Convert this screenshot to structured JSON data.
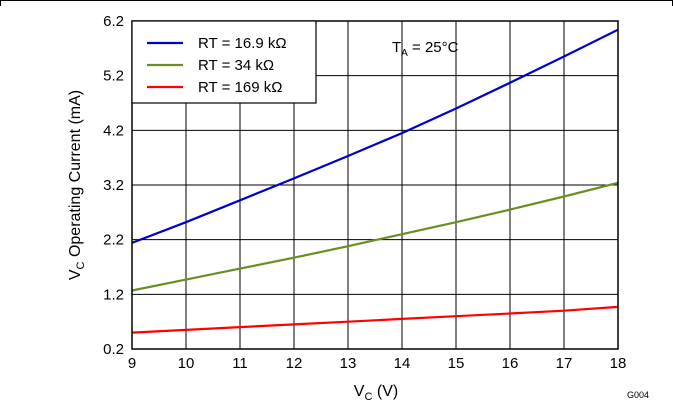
{
  "chart_data": {
    "type": "line",
    "xlabel": {
      "main": "V",
      "sub": "C",
      "rest": " (V)"
    },
    "ylabel": {
      "main": "V",
      "sub": "C",
      "rest": " Operating Current (mA)"
    },
    "xlim": [
      9,
      18
    ],
    "ylim": [
      0.2,
      6.2
    ],
    "xticks": [
      9,
      10,
      11,
      12,
      13,
      14,
      15,
      16,
      17,
      18
    ],
    "yticks": [
      0.2,
      1.2,
      2.2,
      3.2,
      4.2,
      5.2,
      6.2
    ],
    "ytick_labels": [
      "0.2",
      "1.2",
      "2.2",
      "3.2",
      "4.2",
      "5.2",
      "6.2"
    ],
    "grid": true,
    "legend_position": "top-left",
    "annotation": {
      "main": "T",
      "sub": "A",
      "rest": " = 25°C"
    },
    "figure_id": "G004",
    "series": [
      {
        "name": "RT = 16.9 kΩ",
        "color": "#0000cc",
        "x": [
          9,
          10,
          11,
          12,
          13,
          14,
          15,
          16,
          17,
          18
        ],
        "y": [
          2.14,
          2.52,
          2.92,
          3.32,
          3.73,
          4.15,
          4.6,
          5.07,
          5.55,
          6.04
        ]
      },
      {
        "name": "RT = 34 kΩ",
        "color": "#6b8e23",
        "x": [
          9,
          10,
          11,
          12,
          13,
          14,
          15,
          16,
          17,
          18
        ],
        "y": [
          1.27,
          1.47,
          1.67,
          1.87,
          2.08,
          2.3,
          2.52,
          2.75,
          2.99,
          3.24
        ]
      },
      {
        "name": "RT = 169 kΩ",
        "color": "#ff0000",
        "x": [
          9,
          10,
          11,
          12,
          13,
          14,
          15,
          16,
          17,
          18
        ],
        "y": [
          0.5,
          0.55,
          0.6,
          0.65,
          0.7,
          0.75,
          0.8,
          0.85,
          0.9,
          0.97
        ]
      }
    ]
  }
}
